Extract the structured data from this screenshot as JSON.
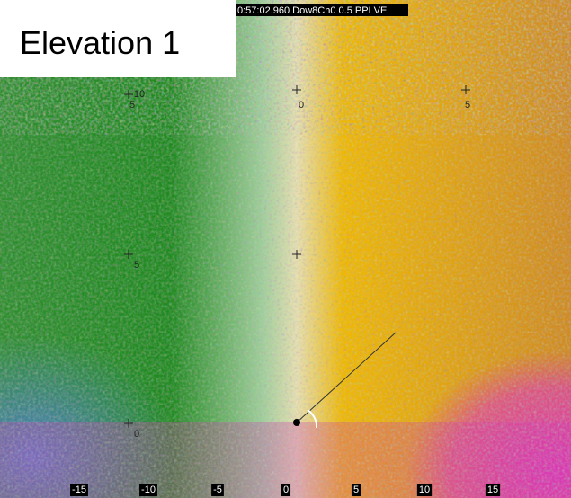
{
  "header": {
    "title": "Elevation 1",
    "status": "0:57:02.960 Dow8Ch0 0.5 PPI VE"
  },
  "x_axis_labels": [
    "-15",
    "-10",
    "-5",
    "0",
    "5",
    "10",
    "15"
  ],
  "range_labels": [
    "10",
    "5",
    "0",
    "5",
    "5",
    "0"
  ]
}
